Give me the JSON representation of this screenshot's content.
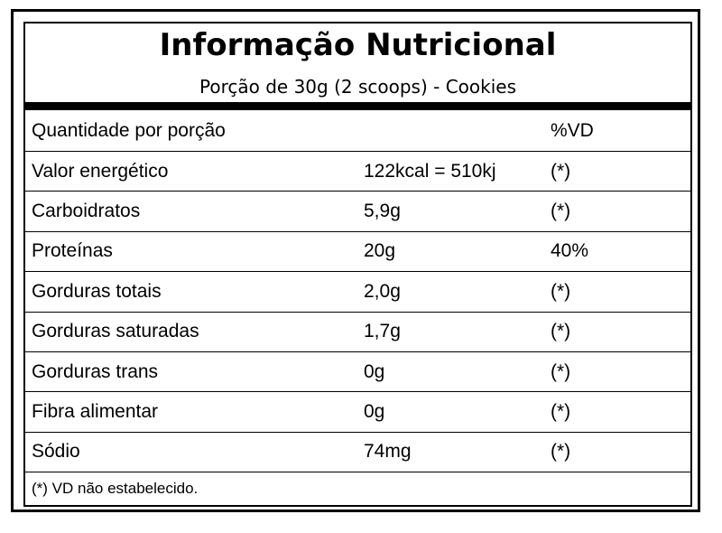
{
  "header": {
    "title": "Informação Nutricional",
    "subtitle": "Porção de 30g (2 scoops) - Cookies"
  },
  "table": {
    "columns": [
      "Quantidade por porção",
      "%VD"
    ],
    "rows": [
      [
        "Valor energético",
        "122kcal = 510kj",
        "(*)"
      ],
      [
        "Carboidratos",
        "5,9g",
        "(*)"
      ],
      [
        "Proteínas",
        "20g",
        "40%"
      ],
      [
        "Gorduras totais",
        "2,0g",
        "(*)"
      ],
      [
        "Gorduras saturadas",
        "1,7g",
        "(*)"
      ],
      [
        "Gorduras trans",
        "0g",
        "(*)"
      ],
      [
        "Fibra alimentar",
        "0g",
        "(*)"
      ],
      [
        "Sódio",
        "74mg",
        "(*)"
      ]
    ],
    "footnote": "(*) VD não estabelecido."
  }
}
